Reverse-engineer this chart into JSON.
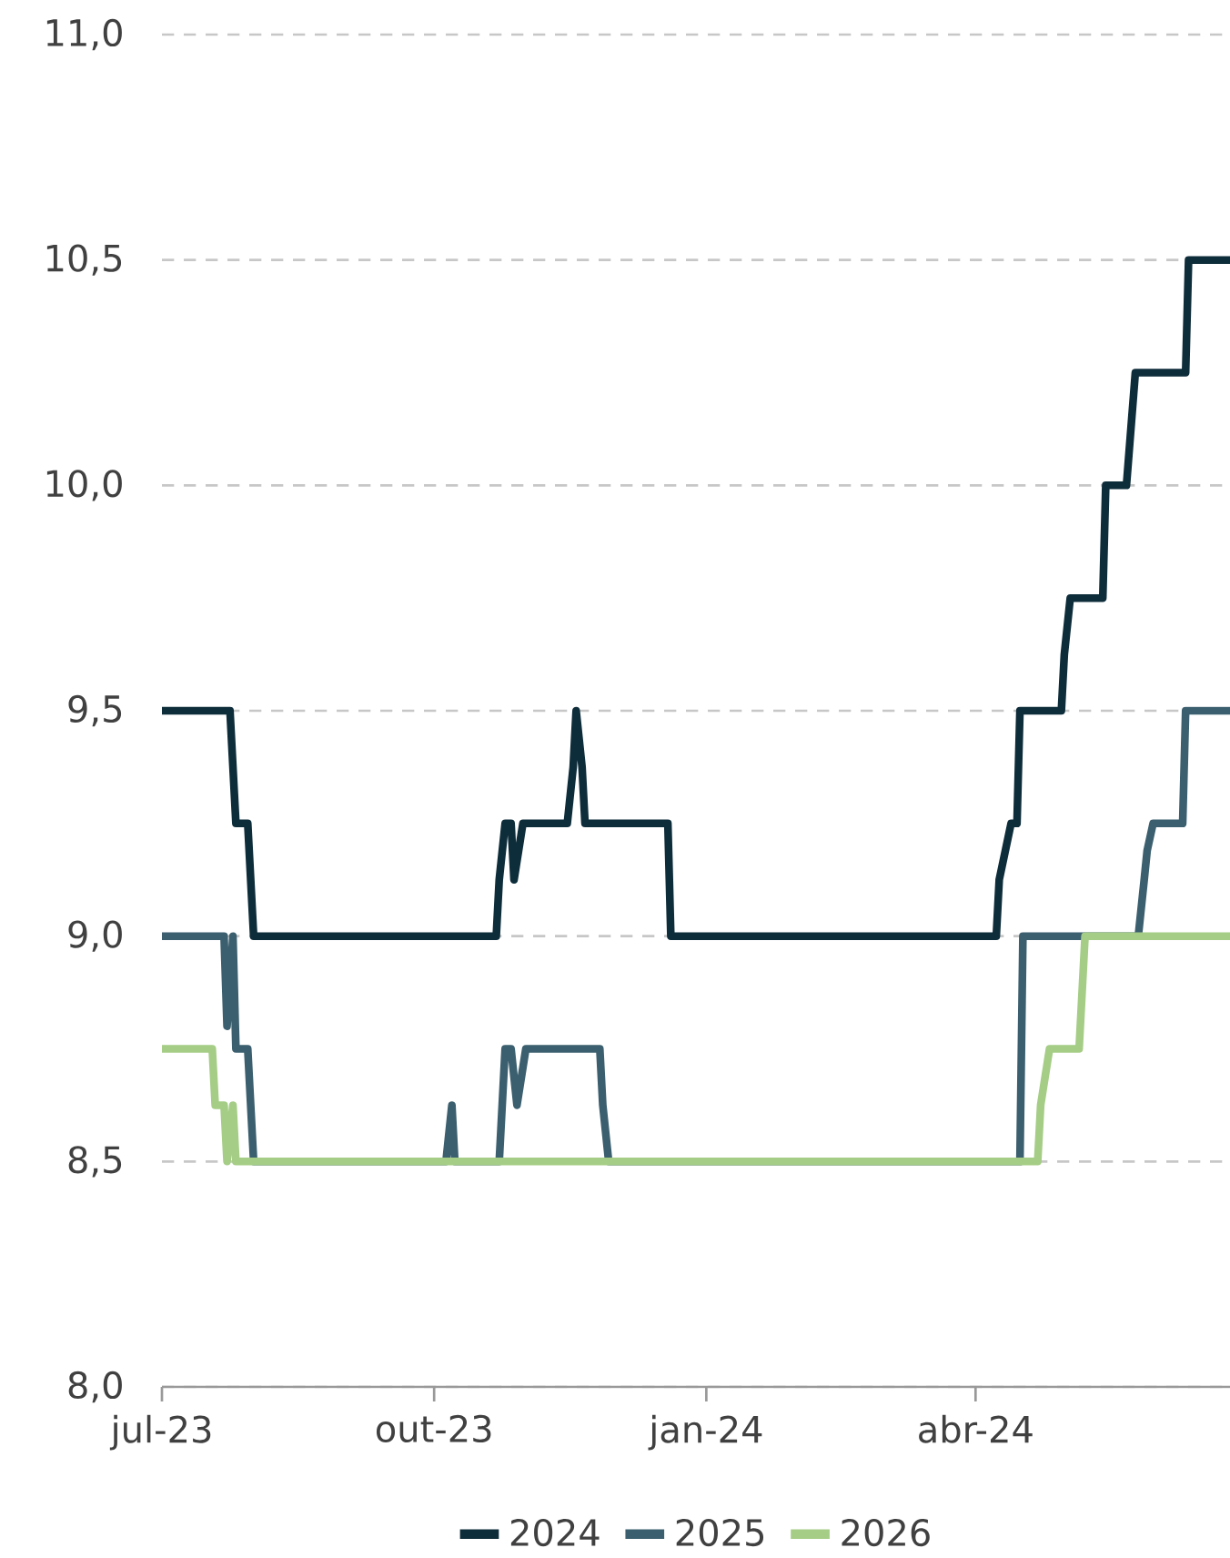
{
  "chart_data": {
    "type": "line",
    "series": [
      {
        "name": "2024",
        "color": "#0e2d3a",
        "x": [
          "2023-07-01",
          "2023-07-24",
          "2023-07-26",
          "2023-07-30",
          "2023-08-01",
          "2023-10-22",
          "2023-10-23",
          "2023-10-25",
          "2023-10-27",
          "2023-10-28",
          "2023-10-31",
          "2023-11-15",
          "2023-11-17",
          "2023-11-18",
          "2023-11-20",
          "2023-11-21",
          "2023-12-19",
          "2023-12-20",
          "2024-04-08",
          "2024-04-09",
          "2024-04-13",
          "2024-04-15",
          "2024-04-16",
          "2024-04-30",
          "2024-05-01",
          "2024-05-03",
          "2024-05-14",
          "2024-05-15",
          "2024-05-22",
          "2024-05-25",
          "2024-06-11",
          "2024-06-12",
          "2024-06-26"
        ],
        "values": [
          9.5,
          9.5,
          9.25,
          9.25,
          9.0,
          9.0,
          9.125,
          9.25,
          9.25,
          9.125,
          9.25,
          9.25,
          9.375,
          9.5,
          9.375,
          9.25,
          9.25,
          9.0,
          9.0,
          9.125,
          9.25,
          9.25,
          9.5,
          9.5,
          9.625,
          9.75,
          9.75,
          10.0,
          10.0,
          10.25,
          10.25,
          10.5,
          10.5
        ]
      },
      {
        "name": "2025",
        "color": "#3b5f6e",
        "x": [
          "2023-07-01",
          "2023-07-22",
          "2023-07-23",
          "2023-07-25",
          "2023-07-26",
          "2023-07-30",
          "2023-08-01",
          "2023-10-05",
          "2023-10-07",
          "2023-10-08",
          "2023-10-23",
          "2023-10-25",
          "2023-10-27",
          "2023-10-29",
          "2023-11-01",
          "2023-11-26",
          "2023-11-27",
          "2023-11-29",
          "2024-04-16",
          "2024-04-17",
          "2024-05-26",
          "2024-05-28",
          "2024-05-29",
          "2024-05-31",
          "2024-06-10",
          "2024-06-11",
          "2024-06-26"
        ],
        "values": [
          9.0,
          9.0,
          8.8,
          9.0,
          8.75,
          8.75,
          8.5,
          8.5,
          8.625,
          8.5,
          8.5,
          8.75,
          8.75,
          8.625,
          8.75,
          8.75,
          8.625,
          8.5,
          8.5,
          9.0,
          9.0,
          9.125,
          9.19,
          9.25,
          9.25,
          9.5,
          9.5
        ]
      },
      {
        "name": "2026",
        "color": "#a5cd86",
        "x": [
          "2023-07-01",
          "2023-07-18",
          "2023-07-19",
          "2023-07-22",
          "2023-07-23",
          "2023-07-25",
          "2023-07-26",
          "2024-04-22",
          "2024-04-23",
          "2024-04-26",
          "2024-05-06",
          "2024-05-08",
          "2024-06-26"
        ],
        "values": [
          8.75,
          8.75,
          8.625,
          8.625,
          8.5,
          8.625,
          8.5,
          8.5,
          8.625,
          8.75,
          8.75,
          9.0,
          9.0
        ]
      }
    ],
    "xlim": [
      "2023-07-01",
      "2024-06-26"
    ],
    "xticks": [
      {
        "value": "2023-07-01",
        "label": "jul-23"
      },
      {
        "value": "2023-10-01",
        "label": "out-23"
      },
      {
        "value": "2024-01-01",
        "label": "jan-24"
      },
      {
        "value": "2024-04-01",
        "label": "abr-24"
      }
    ],
    "ylim": [
      8.0,
      11.0
    ],
    "yticks": [
      {
        "value": 8.0,
        "label": "8,0"
      },
      {
        "value": 8.5,
        "label": "8,5"
      },
      {
        "value": 9.0,
        "label": "9,0"
      },
      {
        "value": 9.5,
        "label": "9,5"
      },
      {
        "value": 10.0,
        "label": "10,0"
      },
      {
        "value": 10.5,
        "label": "10,5"
      },
      {
        "value": 11.0,
        "label": "11,0"
      }
    ],
    "grid": "y",
    "legend": "bottom",
    "line_style": "solid",
    "marker": "none"
  }
}
